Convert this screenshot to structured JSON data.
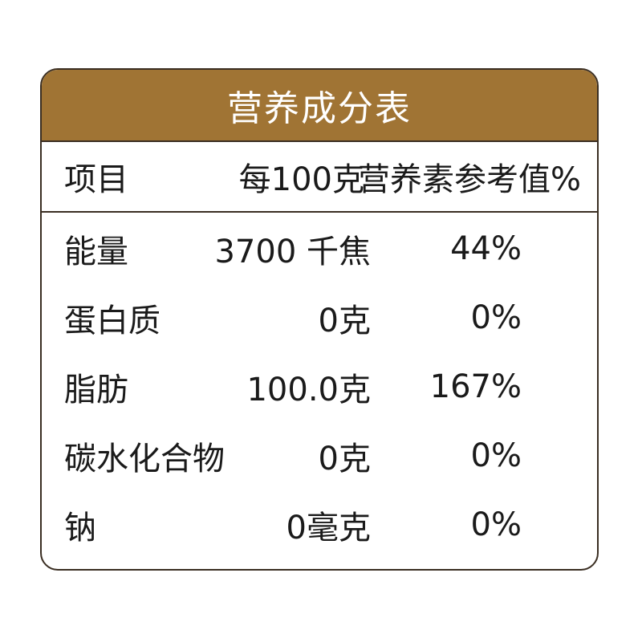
{
  "table": {
    "title": "营养成分表",
    "header_color": "#a07434",
    "columns": {
      "item": "项目",
      "per_100g": "每100克",
      "nrv": "营养素参考值%"
    },
    "rows": [
      {
        "item": "能量",
        "per_100g": "3700 千焦",
        "nrv": "44%"
      },
      {
        "item": "蛋白质",
        "per_100g": "0克",
        "nrv": "0%"
      },
      {
        "item": "脂肪",
        "per_100g": "100.0克",
        "nrv": "167%"
      },
      {
        "item": "碳水化合物",
        "per_100g": "0克",
        "nrv": "0%"
      },
      {
        "item": "钠",
        "per_100g": "0毫克",
        "nrv": "0%"
      }
    ]
  }
}
